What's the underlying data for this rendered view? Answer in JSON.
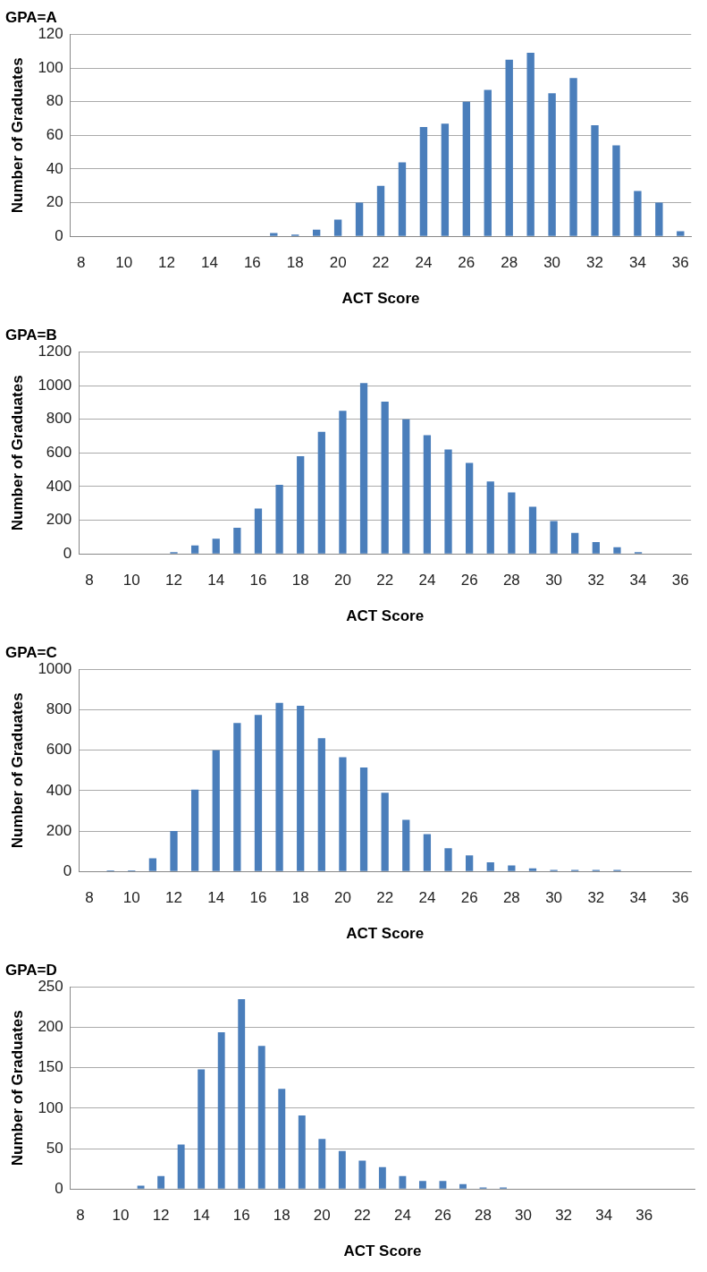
{
  "chart_data": [
    {
      "type": "bar",
      "title": "GPA=A",
      "xlabel": "ACT Score",
      "ylabel": "Number of Graduates",
      "categories": [
        "8",
        null,
        "10",
        null,
        "12",
        null,
        "14",
        null,
        "16",
        null,
        "18",
        null,
        "20",
        null,
        "22",
        null,
        "24",
        null,
        "26",
        null,
        "28",
        null,
        "30",
        null,
        "32",
        null,
        "34",
        null,
        "36"
      ],
      "color": "#4a7ebb",
      "values": [
        0,
        0,
        0,
        0,
        0,
        0,
        0,
        0,
        0,
        2,
        1,
        4,
        10,
        20,
        30,
        44,
        65,
        67,
        80,
        87,
        105,
        109,
        85,
        94,
        66,
        54,
        27,
        20,
        3
      ],
      "ylim": [
        0,
        120
      ],
      "yticks": [
        0,
        20,
        40,
        60,
        80,
        100,
        120
      ],
      "grid": "y",
      "legend": false
    },
    {
      "type": "bar",
      "title": "GPA=B",
      "xlabel": "ACT Score",
      "ylabel": "Number of Graduates",
      "categories": [
        "8",
        null,
        "10",
        null,
        "12",
        null,
        "14",
        null,
        "16",
        null,
        "18",
        null,
        "20",
        null,
        "22",
        null,
        "24",
        null,
        "26",
        null,
        "28",
        null,
        "30",
        null,
        "32",
        null,
        "34",
        null,
        "36"
      ],
      "color": "#4a7ebb",
      "values": [
        0,
        0,
        0,
        0,
        10,
        50,
        90,
        155,
        270,
        410,
        580,
        725,
        850,
        1015,
        905,
        800,
        705,
        620,
        540,
        430,
        365,
        280,
        195,
        125,
        70,
        40,
        10,
        0,
        0
      ],
      "ylim": [
        0,
        1200
      ],
      "yticks": [
        0,
        200,
        400,
        600,
        800,
        1000,
        1200
      ],
      "grid": "y",
      "legend": false
    },
    {
      "type": "bar",
      "title": "GPA=C",
      "xlabel": "ACT Score",
      "ylabel": "Number of Graduates",
      "categories": [
        "8",
        null,
        "10",
        null,
        "12",
        null,
        "14",
        null,
        "16",
        null,
        "18",
        null,
        "20",
        null,
        "22",
        null,
        "24",
        null,
        "26",
        null,
        "28",
        null,
        "30",
        null,
        "32",
        null,
        "34",
        null,
        "36"
      ],
      "color": "#4a7ebb",
      "values": [
        0,
        5,
        5,
        65,
        200,
        405,
        600,
        735,
        775,
        835,
        820,
        660,
        565,
        515,
        390,
        255,
        185,
        115,
        80,
        45,
        30,
        15,
        8,
        8,
        8,
        8,
        0,
        0,
        0
      ],
      "ylim": [
        0,
        1000
      ],
      "yticks": [
        0,
        200,
        400,
        600,
        800,
        1000
      ],
      "grid": "y",
      "legend": false
    },
    {
      "type": "bar",
      "title": "GPA=D",
      "xlabel": "ACT Score",
      "ylabel": "Number of Graduates",
      "categories": [
        "8",
        null,
        "10",
        null,
        "12",
        null,
        "14",
        null,
        "16",
        null,
        "18",
        null,
        "20",
        null,
        "22",
        null,
        "24",
        null,
        "26",
        null,
        "28",
        null,
        "30",
        null,
        "32",
        null,
        "34",
        null,
        "36",
        null,
        null
      ],
      "color": "#4a7ebb",
      "values": [
        0,
        0,
        0,
        4,
        16,
        55,
        148,
        194,
        235,
        177,
        124,
        91,
        62,
        47,
        35,
        27,
        16,
        10,
        10,
        6,
        2,
        2,
        0,
        0,
        0,
        0,
        0,
        0,
        0,
        0,
        0
      ],
      "ylim": [
        0,
        250
      ],
      "yticks": [
        0,
        50,
        100,
        150,
        200,
        250
      ],
      "grid": "y",
      "legend": false
    }
  ]
}
